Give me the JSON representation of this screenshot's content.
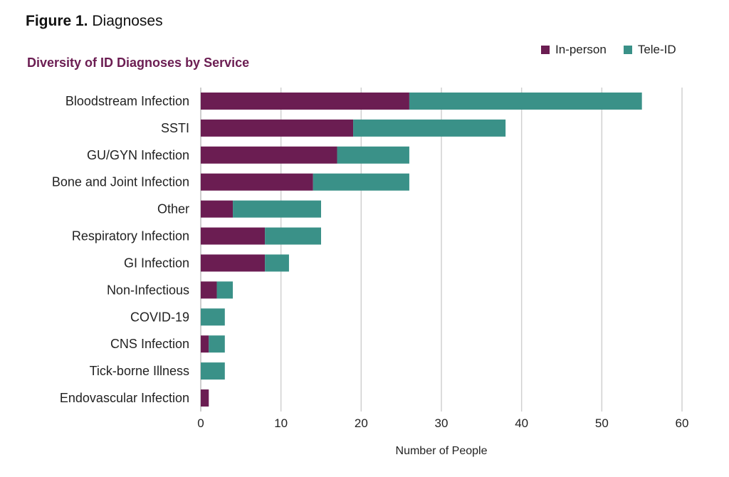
{
  "figure": {
    "label": "Figure 1.",
    "title": "Diagnoses"
  },
  "colors": {
    "in_person": "#6b1d52",
    "tele_id": "#3a9188",
    "grid": "#d0d0d0"
  },
  "chart_data": {
    "type": "bar",
    "orientation": "horizontal",
    "stacked": true,
    "title": "Diversity of ID Diagnoses by Service",
    "xlabel": "Number of People",
    "ylabel": "",
    "xlim": [
      0,
      60
    ],
    "xticks": [
      0,
      10,
      20,
      30,
      40,
      50,
      60
    ],
    "grid": true,
    "legend_position": "top-right",
    "categories": [
      "Bloodstream Infection",
      "SSTI",
      "GU/GYN Infection",
      "Bone and Joint Infection",
      "Other",
      "Respiratory Infection",
      "GI Infection",
      "Non-Infectious",
      "COVID-19",
      "CNS Infection",
      "Tick-borne Illness",
      "Endovascular Infection"
    ],
    "series": [
      {
        "name": "In-person",
        "values": [
          26,
          19,
          17,
          14,
          4,
          8,
          8,
          2,
          0,
          1,
          0,
          1
        ]
      },
      {
        "name": "Tele-ID",
        "values": [
          29,
          19,
          9,
          12,
          11,
          7,
          3,
          2,
          3,
          2,
          3,
          0
        ]
      }
    ]
  }
}
